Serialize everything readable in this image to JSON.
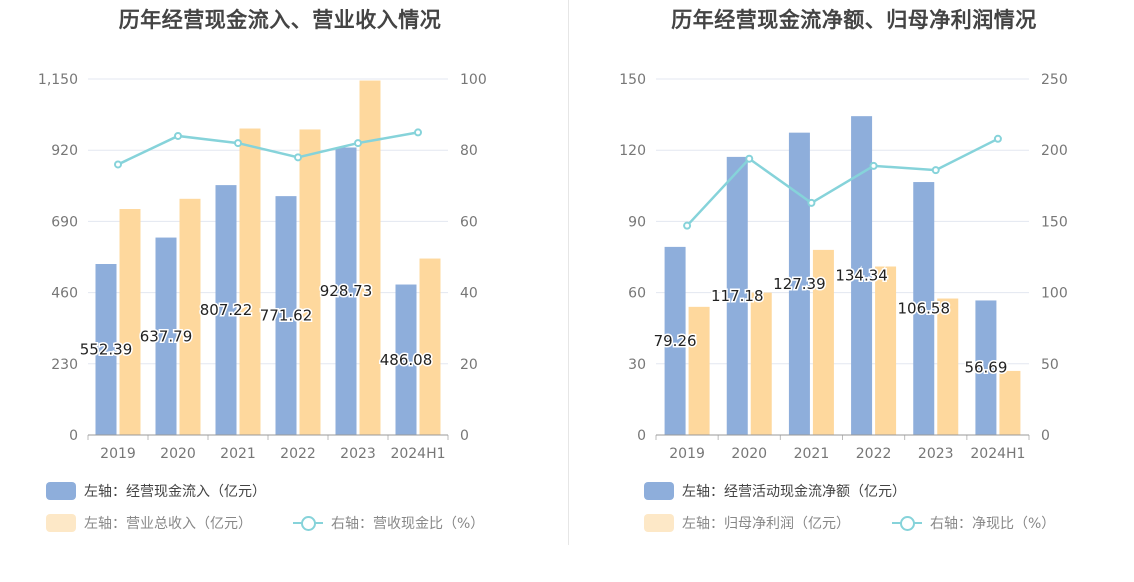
{
  "chart_data": [
    {
      "type": "bar",
      "title": "历年经营现金流入、营业收入情况",
      "categories": [
        "2019",
        "2020",
        "2021",
        "2022",
        "2023",
        "2024H1"
      ],
      "series": [
        {
          "name": "左轴：经营现金流入（亿元）",
          "axis": "left",
          "color": "#8eaedb",
          "values": [
            552.39,
            637.79,
            807.22,
            771.62,
            928.73,
            486.08
          ],
          "labels": [
            "552.39",
            "637.79",
            "807.22",
            "771.62",
            "928.73",
            "486.08"
          ]
        },
        {
          "name": "左轴：营业总收入（亿元）",
          "axis": "left",
          "color": "#fed89d",
          "values": [
            730,
            763,
            990,
            987,
            1145,
            570
          ]
        },
        {
          "name": "右轴：营收现金比（%）",
          "axis": "right",
          "type": "line",
          "color": "#86d3da",
          "values": [
            76,
            84,
            82,
            78,
            82,
            85
          ]
        }
      ],
      "left_ticks": [
        "0",
        "230",
        "460",
        "690",
        "920",
        "1,150"
      ],
      "right_ticks": [
        "0",
        "20",
        "40",
        "60",
        "80",
        "100"
      ],
      "left_ylim": [
        0,
        1150
      ],
      "right_ylim": [
        0,
        100
      ],
      "grid": true,
      "legend_position": "bottom"
    },
    {
      "type": "bar",
      "title": "历年经营现金流净额、归母净利润情况",
      "categories": [
        "2019",
        "2020",
        "2021",
        "2022",
        "2023",
        "2024H1"
      ],
      "series": [
        {
          "name": "左轴：经营活动现金流净额（亿元）",
          "axis": "left",
          "color": "#8eaedb",
          "values": [
            79.26,
            117.18,
            127.39,
            134.34,
            106.58,
            56.69
          ],
          "labels": [
            "79.26",
            "117.18",
            "127.39",
            "134.34",
            "106.58",
            "56.69"
          ]
        },
        {
          "name": "左轴：归母净利润（亿元）",
          "axis": "left",
          "color": "#fed89d",
          "values": [
            54,
            60,
            78,
            71,
            57.5,
            27
          ]
        },
        {
          "name": "右轴：净现比（%）",
          "axis": "right",
          "type": "line",
          "color": "#86d3da",
          "values": [
            147,
            194,
            163,
            189,
            186,
            208
          ]
        }
      ],
      "left_ticks": [
        "0",
        "30",
        "60",
        "90",
        "120",
        "150"
      ],
      "right_ticks": [
        "0",
        "50",
        "100",
        "150",
        "200",
        "250"
      ],
      "left_ylim": [
        0,
        150
      ],
      "right_ylim": [
        0,
        250
      ],
      "grid": true,
      "legend_position": "bottom"
    }
  ],
  "legend": {
    "left": {
      "item1": "左轴：经营现金流入（亿元）",
      "item2": "左轴：营业总收入（亿元）",
      "item3": "右轴：营收现金比（%）"
    },
    "right": {
      "item1": "左轴：经营活动现金流净额（亿元）",
      "item2": "左轴：归母净利润（亿元）",
      "item3": "右轴：净现比（%）"
    }
  },
  "colors": {
    "bar_primary": "#8eaedb",
    "bar_secondary": "#fed89d",
    "bar_secondary_legend": "#fde8c7",
    "line": "#86d3da",
    "grid": "#e3e7f0",
    "axis_text": "#777777"
  }
}
